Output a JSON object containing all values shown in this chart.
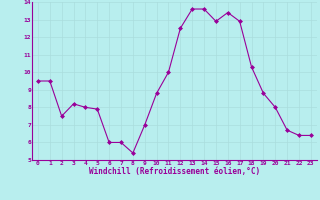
{
  "x": [
    0,
    1,
    2,
    3,
    4,
    5,
    6,
    7,
    8,
    9,
    10,
    11,
    12,
    13,
    14,
    15,
    16,
    17,
    18,
    19,
    20,
    21,
    22,
    23
  ],
  "y": [
    9.5,
    9.5,
    7.5,
    8.2,
    8.0,
    7.9,
    6.0,
    6.0,
    5.4,
    7.0,
    8.8,
    10.0,
    12.5,
    13.6,
    13.6,
    12.9,
    13.4,
    12.9,
    10.3,
    8.8,
    8.0,
    6.7,
    6.4,
    6.4
  ],
  "line_color": "#990099",
  "marker": "D",
  "marker_size": 2.0,
  "bg_color": "#b8eeee",
  "grid_color": "#cceeee",
  "xlabel": "Windchill (Refroidissement éolien,°C)",
  "xlabel_color": "#990099",
  "tick_color": "#990099",
  "ylim": [
    5,
    14
  ],
  "xlim": [
    -0.5,
    23.5
  ],
  "yticks": [
    5,
    6,
    7,
    8,
    9,
    10,
    11,
    12,
    13,
    14
  ],
  "xticks": [
    0,
    1,
    2,
    3,
    4,
    5,
    6,
    7,
    8,
    9,
    10,
    11,
    12,
    13,
    14,
    15,
    16,
    17,
    18,
    19,
    20,
    21,
    22,
    23
  ],
  "fig_bg_color": "#b8eeee",
  "border_color": "#990099",
  "spine_color": "#990099"
}
